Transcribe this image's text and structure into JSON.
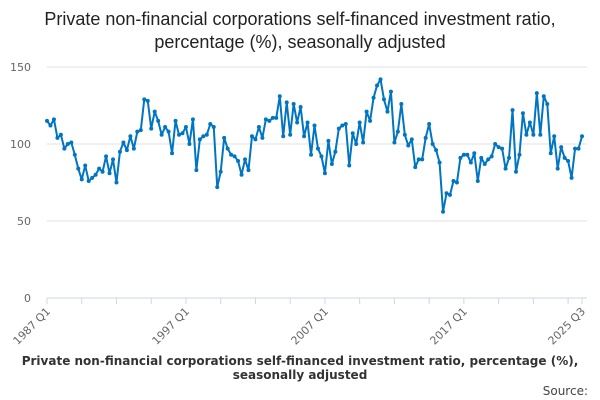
{
  "chart_data": {
    "type": "line",
    "title": "Private non-financial corporations self-financed investment ratio, percentage (%), seasonally adjusted",
    "xlabel": "Private non-financial corporations self-financed investment ratio, percentage (%), seasonally adjusted",
    "ylabel": "",
    "source": "Source:",
    "start_year": 1987,
    "start_quarter": 1,
    "x_tick_labels": [
      "1987 Q1",
      "1997 Q1",
      "2007 Q1",
      "2017 Q1",
      "2025 Q3"
    ],
    "y_ticks": [
      0,
      50,
      100,
      150
    ],
    "ylim": [
      0,
      160
    ],
    "grid": true,
    "color": "#0075c2",
    "series": [
      {
        "name": "Self-financed investment ratio",
        "values": [
          115,
          112,
          116,
          104,
          106,
          97,
          100,
          101,
          93,
          84,
          77,
          86,
          76,
          78,
          80,
          84,
          82,
          92,
          81,
          90,
          75,
          95,
          101,
          96,
          105,
          97,
          108,
          109,
          129,
          128,
          110,
          121,
          115,
          106,
          111,
          108,
          94,
          115,
          106,
          107,
          111,
          100,
          116,
          83,
          103,
          105,
          106,
          113,
          111,
          72,
          82,
          104,
          97,
          93,
          92,
          89,
          80,
          90,
          83,
          105,
          103,
          111,
          104,
          116,
          115,
          117,
          117,
          131,
          105,
          127,
          106,
          126,
          114,
          124,
          105,
          114,
          93,
          112,
          97,
          92,
          81,
          102,
          87,
          95,
          110,
          112,
          113,
          86,
          107,
          100,
          114,
          101,
          121,
          115,
          130,
          138,
          142,
          129,
          121,
          134,
          101,
          108,
          126,
          106,
          99,
          103,
          85,
          90,
          90,
          104,
          113,
          100,
          96,
          88,
          56,
          68,
          67,
          76,
          75,
          91,
          93,
          93,
          88,
          94,
          76,
          91,
          87,
          90,
          92,
          100,
          98,
          97,
          84,
          91,
          122,
          82,
          93,
          120,
          106,
          114,
          106,
          133,
          106,
          131,
          126,
          94,
          105,
          84,
          98,
          91,
          89,
          78,
          97,
          97,
          105
        ]
      }
    ]
  }
}
